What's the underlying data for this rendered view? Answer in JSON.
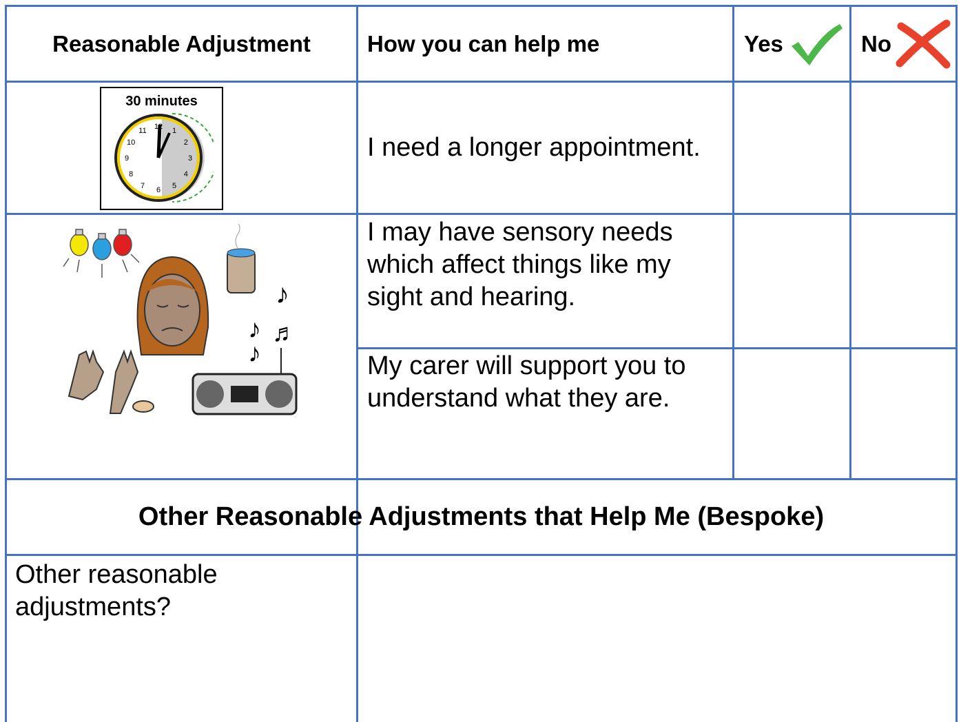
{
  "table": {
    "header": [
      "Reasonable Adjustment",
      "How you can help me",
      "Yes",
      "No"
    ],
    "rows": [
      {
        "image_label": "30 minutes",
        "text": "I need a longer appointment."
      },
      {
        "text": "I may have sensory needs which affect things like my sight and hearing."
      },
      {
        "text": "My carer will support you to understand what they are."
      }
    ],
    "section_title": "Other Reasonable Adjustments that Help Me (Bespoke)",
    "other": {
      "label": "Other reasonable adjustments?"
    }
  },
  "clock": {
    "numbers": [
      "12",
      "1",
      "2",
      "3",
      "4",
      "5",
      "6",
      "7",
      "8",
      "9",
      "10",
      "11"
    ]
  }
}
